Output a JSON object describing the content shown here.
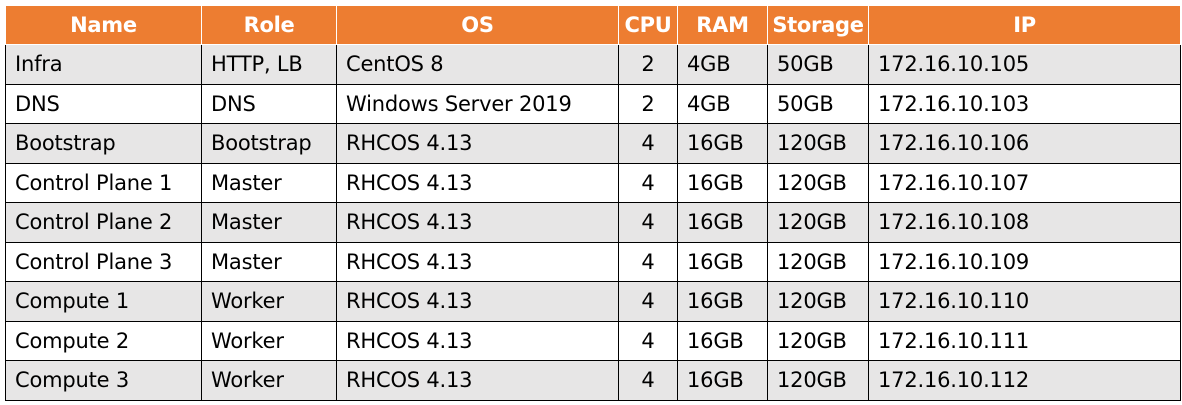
{
  "colors": {
    "header_bg": "#ED7D31",
    "header_text": "#FFFFFF",
    "row_odd_bg": "#E7E6E6",
    "row_even_bg": "#FFFFFF",
    "border": "#000000"
  },
  "table": {
    "headers": [
      "Name",
      "Role",
      "OS",
      "CPU",
      "RAM",
      "Storage",
      "IP"
    ],
    "rows": [
      [
        "Infra",
        "HTTP, LB",
        "CentOS 8",
        "2",
        "4GB",
        "50GB",
        "172.16.10.105"
      ],
      [
        "DNS",
        "DNS",
        "Windows Server 2019",
        "2",
        "4GB",
        "50GB",
        "172.16.10.103"
      ],
      [
        "Bootstrap",
        "Bootstrap",
        "RHCOS 4.13",
        "4",
        "16GB",
        "120GB",
        "172.16.10.106"
      ],
      [
        "Control Plane 1",
        "Master",
        "RHCOS 4.13",
        "4",
        "16GB",
        "120GB",
        "172.16.10.107"
      ],
      [
        "Control Plane 2",
        "Master",
        "RHCOS 4.13",
        "4",
        "16GB",
        "120GB",
        "172.16.10.108"
      ],
      [
        "Control Plane 3",
        "Master",
        "RHCOS 4.13",
        "4",
        "16GB",
        "120GB",
        "172.16.10.109"
      ],
      [
        "Compute 1",
        "Worker",
        "RHCOS 4.13",
        "4",
        "16GB",
        "120GB",
        "172.16.10.110"
      ],
      [
        "Compute 2",
        "Worker",
        "RHCOS 4.13",
        "4",
        "16GB",
        "120GB",
        "172.16.10.111"
      ],
      [
        "Compute 3",
        "Worker",
        "RHCOS 4.13",
        "4",
        "16GB",
        "120GB",
        "172.16.10.112"
      ]
    ]
  }
}
